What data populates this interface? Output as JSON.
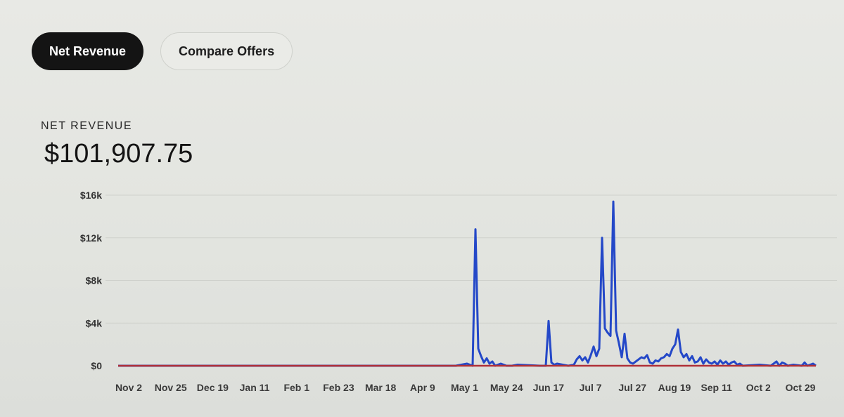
{
  "tabs": [
    {
      "label": "Net Revenue",
      "active": true
    },
    {
      "label": "Compare Offers",
      "active": false
    }
  ],
  "summary": {
    "label": "NET REVENUE",
    "value": "$101,907.75"
  },
  "colors": {
    "series_primary": "#2448c8",
    "series_secondary": "#b03038",
    "grid": "#cfd1cc"
  },
  "chart_data": {
    "type": "line",
    "title": "",
    "xlabel": "",
    "ylabel": "",
    "ylim": [
      0,
      16000
    ],
    "y_ticks": [
      {
        "value": 0,
        "label": "$0"
      },
      {
        "value": 4000,
        "label": "$4k"
      },
      {
        "value": 8000,
        "label": "$8k"
      },
      {
        "value": 12000,
        "label": "$12k"
      },
      {
        "value": 16000,
        "label": "$16k"
      }
    ],
    "x_ticks": [
      "Nov 2",
      "Nov 25",
      "Dec 19",
      "Jan 11",
      "Feb 1",
      "Feb 23",
      "Mar 18",
      "Apr 9",
      "May 1",
      "May 24",
      "Jun 17",
      "Jul 7",
      "Jul 27",
      "Aug 19",
      "Sep 11",
      "Oct 2",
      "Oct 29"
    ],
    "grid": true,
    "legend": "none",
    "series": [
      {
        "values": [
          [
            0,
            0
          ],
          [
            120,
            0
          ],
          [
            124,
            200
          ],
          [
            126,
            0
          ],
          [
            127,
            12800
          ],
          [
            128,
            1600
          ],
          [
            129,
            900
          ],
          [
            130,
            300
          ],
          [
            131,
            700
          ],
          [
            132,
            200
          ],
          [
            133,
            400
          ],
          [
            134,
            0
          ],
          [
            136,
            200
          ],
          [
            138,
            0
          ],
          [
            140,
            0
          ],
          [
            142,
            100
          ],
          [
            150,
            0
          ],
          [
            152,
            0
          ],
          [
            153,
            4200
          ],
          [
            154,
            300
          ],
          [
            155,
            100
          ],
          [
            156,
            200
          ],
          [
            158,
            100
          ],
          [
            160,
            0
          ],
          [
            162,
            100
          ],
          [
            163,
            600
          ],
          [
            164,
            900
          ],
          [
            165,
            500
          ],
          [
            166,
            800
          ],
          [
            167,
            300
          ],
          [
            168,
            1000
          ],
          [
            169,
            1800
          ],
          [
            170,
            900
          ],
          [
            171,
            1600
          ],
          [
            172,
            12000
          ],
          [
            173,
            3500
          ],
          [
            174,
            3100
          ],
          [
            175,
            2800
          ],
          [
            176,
            15400
          ],
          [
            177,
            3300
          ],
          [
            178,
            2100
          ],
          [
            179,
            800
          ],
          [
            180,
            3000
          ],
          [
            181,
            700
          ],
          [
            182,
            300
          ],
          [
            183,
            200
          ],
          [
            184,
            400
          ],
          [
            185,
            600
          ],
          [
            186,
            800
          ],
          [
            187,
            700
          ],
          [
            188,
            1000
          ],
          [
            189,
            300
          ],
          [
            190,
            200
          ],
          [
            191,
            500
          ],
          [
            192,
            400
          ],
          [
            193,
            700
          ],
          [
            194,
            800
          ],
          [
            195,
            1100
          ],
          [
            196,
            900
          ],
          [
            197,
            1600
          ],
          [
            198,
            2000
          ],
          [
            199,
            3400
          ],
          [
            200,
            1300
          ],
          [
            201,
            800
          ],
          [
            202,
            1100
          ],
          [
            203,
            500
          ],
          [
            204,
            900
          ],
          [
            205,
            300
          ],
          [
            206,
            400
          ],
          [
            207,
            800
          ],
          [
            208,
            200
          ],
          [
            209,
            600
          ],
          [
            210,
            300
          ],
          [
            211,
            200
          ],
          [
            212,
            400
          ],
          [
            213,
            100
          ],
          [
            214,
            500
          ],
          [
            215,
            200
          ],
          [
            216,
            400
          ],
          [
            217,
            100
          ],
          [
            218,
            300
          ],
          [
            219,
            400
          ],
          [
            220,
            100
          ],
          [
            221,
            200
          ],
          [
            222,
            0
          ],
          [
            228,
            100
          ],
          [
            232,
            0
          ],
          [
            234,
            400
          ],
          [
            235,
            0
          ],
          [
            236,
            300
          ],
          [
            237,
            200
          ],
          [
            238,
            0
          ],
          [
            240,
            100
          ],
          [
            243,
            0
          ],
          [
            244,
            300
          ],
          [
            245,
            0
          ],
          [
            247,
            200
          ],
          [
            248,
            0
          ]
        ]
      },
      {
        "values": [
          [
            0,
            0
          ],
          [
            248,
            0
          ]
        ]
      }
    ]
  }
}
